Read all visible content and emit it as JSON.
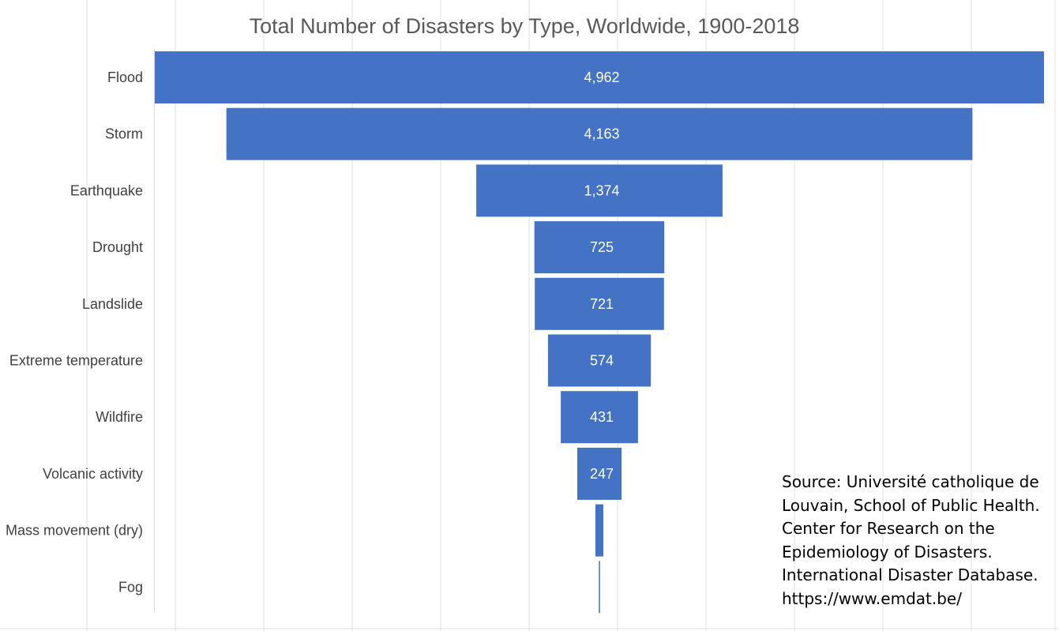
{
  "chart_data": {
    "type": "bar",
    "subtype": "funnel",
    "title": "Total Number of Disasters by Type, Worldwide, 1900-2018",
    "categories": [
      "Flood",
      "Storm",
      "Earthquake",
      "Drought",
      "Landslide",
      "Extreme temperature",
      "Wildfire",
      "Volcanic activity",
      "Mass movement (dry)",
      "Fog"
    ],
    "values": [
      4962,
      4163,
      1374,
      725,
      721,
      574,
      431,
      247,
      44,
      6
    ],
    "data_labels": [
      "4,962",
      "4,163",
      "1,374",
      "725",
      "721",
      "574",
      "431",
      "247",
      "",
      ""
    ],
    "grid": false,
    "legend": "none"
  },
  "source_note": {
    "lines": [
      "Source: Université catholique de",
      "Louvain, School of Public Health.",
      "Center for Research on the",
      "Epidemiology of Disasters.",
      "International Disaster Database.",
      "https://www.emdat.be/"
    ]
  },
  "colors": {
    "bar": "#4472C4",
    "title": "#595959",
    "labels": "#404040",
    "axis": "#d9d9d9",
    "sheet_grid": "#e2e2e2"
  }
}
